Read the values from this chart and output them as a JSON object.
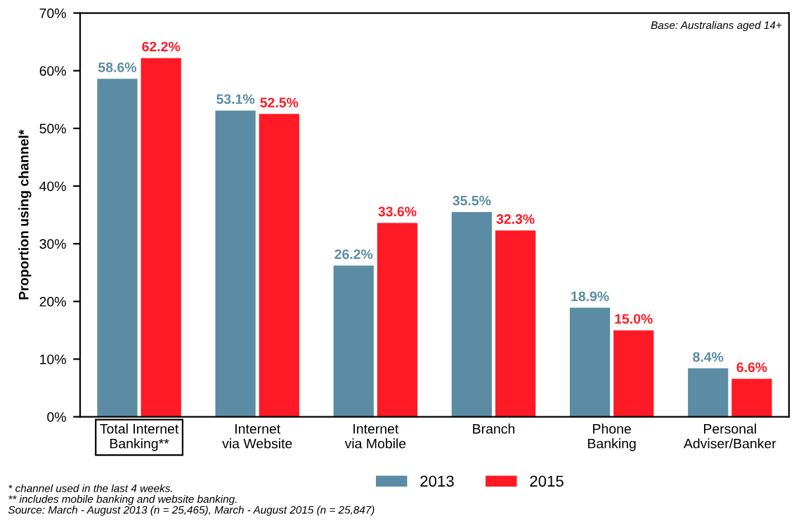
{
  "chart_data": {
    "type": "bar",
    "ylabel": "Proportion using channel*",
    "categories": [
      "Total Internet\nBanking**",
      "Internet\nvia Website",
      "Internet\nvia Mobile",
      "Branch",
      "Phone\nBanking",
      "Personal\nAdviser/Banker"
    ],
    "series": [
      {
        "name": "2013",
        "color": "#5b8ca3",
        "values": [
          58.6,
          53.1,
          26.2,
          35.5,
          18.9,
          8.4
        ],
        "value_labels": [
          "58.6%",
          "53.1%",
          "26.2%",
          "35.5%",
          "18.9%",
          "8.4%"
        ]
      },
      {
        "name": "2015",
        "color": "#ff1a25",
        "values": [
          62.2,
          52.5,
          33.6,
          32.3,
          15.0,
          6.6
        ],
        "value_labels": [
          "62.2%",
          "52.5%",
          "33.6%",
          "32.3%",
          "15.0%",
          "6.6%"
        ]
      }
    ],
    "ylim": [
      0,
      70
    ],
    "yticks": [
      {
        "value": 0,
        "label": "0%"
      },
      {
        "value": 10,
        "label": "10%"
      },
      {
        "value": 20,
        "label": "20%"
      },
      {
        "value": 30,
        "label": "30%"
      },
      {
        "value": 40,
        "label": "40%"
      },
      {
        "value": 50,
        "label": "50%"
      },
      {
        "value": 60,
        "label": "60%"
      },
      {
        "value": 70,
        "label": "70%"
      }
    ],
    "grid": false,
    "legend": "bottom",
    "annotations": [
      "Base: Australians aged 14+",
      "* channel used in the last 4 weeks.\n** includes mobile banking and website banking.\nSource: March - August 2013 (n = 25,465), March - August 2015 (n = 25,847)"
    ]
  }
}
